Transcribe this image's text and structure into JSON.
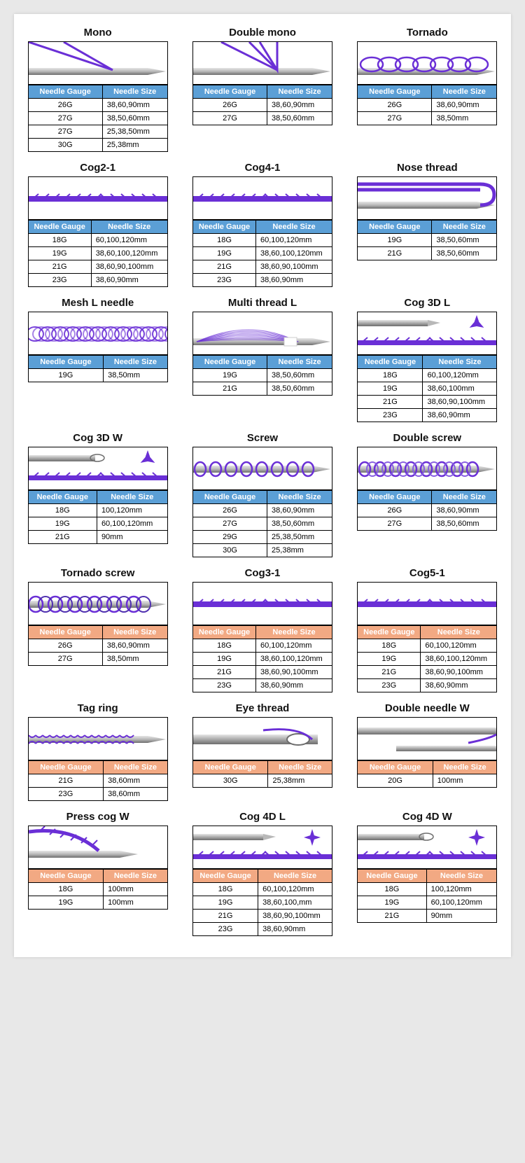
{
  "colors": {
    "header_blue": "#5b9fd6",
    "header_peach": "#f2a983",
    "thread": "#6a2fd6",
    "needle_body": "#b8b8b8",
    "needle_dark": "#6d6d6d",
    "needle_light": "#e6e6e6"
  },
  "header_labels": {
    "gauge": "Needle Gauge",
    "size": "Needle Size"
  },
  "cards": [
    {
      "title": "Mono",
      "illus": "mono",
      "header_color": "blue",
      "rows": [
        [
          "26G",
          "38,60,90mm"
        ],
        [
          "27G",
          "38,50,60mm"
        ],
        [
          "27G",
          "25,38,50mm"
        ],
        [
          "30G",
          "25,38mm"
        ]
      ]
    },
    {
      "title": "Double mono",
      "illus": "double_mono",
      "header_color": "blue",
      "rows": [
        [
          "26G",
          "38,60,90mm"
        ],
        [
          "27G",
          "38,50,60mm"
        ]
      ]
    },
    {
      "title": "Tornado",
      "illus": "tornado",
      "header_color": "blue",
      "rows": [
        [
          "26G",
          "38,60,90mm"
        ],
        [
          "27G",
          "38,50mm"
        ]
      ]
    },
    {
      "title": "Cog2-1",
      "illus": "cog",
      "header_color": "blue",
      "rows": [
        [
          "18G",
          "60,100,120mm"
        ],
        [
          "19G",
          "38,60,100,120mm"
        ],
        [
          "21G",
          "38,60,90,100mm"
        ],
        [
          "23G",
          "38,60,90mm"
        ]
      ]
    },
    {
      "title": "Cog4-1",
      "illus": "cog",
      "header_color": "blue",
      "rows": [
        [
          "18G",
          "60,100,120mm"
        ],
        [
          "19G",
          "38,60,100,120mm"
        ],
        [
          "21G",
          "38,60,90,100mm"
        ],
        [
          "23G",
          "38,60,90mm"
        ]
      ]
    },
    {
      "title": "Nose thread",
      "illus": "nose",
      "header_color": "blue",
      "rows": [
        [
          "19G",
          "38,50,60mm"
        ],
        [
          "21G",
          "38,50,60mm"
        ]
      ]
    },
    {
      "title": "Mesh L needle",
      "illus": "mesh",
      "header_color": "blue",
      "rows": [
        [
          "19G",
          "38,50mm"
        ]
      ]
    },
    {
      "title": "Multi thread L",
      "illus": "multi",
      "header_color": "blue",
      "rows": [
        [
          "19G",
          "38,50,60mm"
        ],
        [
          "21G",
          "38,50,60mm"
        ]
      ]
    },
    {
      "title": "Cog 3D L",
      "illus": "cog3d_l",
      "header_color": "blue",
      "rows": [
        [
          "18G",
          "60,100,120mm"
        ],
        [
          "19G",
          "38,60,100mm"
        ],
        [
          "21G",
          "38,60,90,100mm"
        ],
        [
          "23G",
          "38,60,90mm"
        ]
      ]
    },
    {
      "title": "Cog 3D W",
      "illus": "cog3d_w",
      "header_color": "blue",
      "rows": [
        [
          "18G",
          "100,120mm"
        ],
        [
          "19G",
          "60,100,120mm"
        ],
        [
          "21G",
          "90mm"
        ]
      ]
    },
    {
      "title": "Screw",
      "illus": "screw",
      "header_color": "blue",
      "rows": [
        [
          "26G",
          "38,60,90mm"
        ],
        [
          "27G",
          "38,50,60mm"
        ],
        [
          "29G",
          "25,38,50mm"
        ],
        [
          "30G",
          "25,38mm"
        ]
      ]
    },
    {
      "title": "Double screw",
      "illus": "double_screw",
      "header_color": "blue",
      "rows": [
        [
          "26G",
          "38,60,90mm"
        ],
        [
          "27G",
          "38,50,60mm"
        ]
      ]
    },
    {
      "title": "Tornado screw",
      "illus": "tornado_screw",
      "header_color": "peach",
      "rows": [
        [
          "26G",
          "38,60,90mm"
        ],
        [
          "27G",
          "38,50mm"
        ]
      ]
    },
    {
      "title": "Cog3-1",
      "illus": "cog",
      "header_color": "peach",
      "rows": [
        [
          "18G",
          "60,100,120mm"
        ],
        [
          "19G",
          "38,60,100,120mm"
        ],
        [
          "21G",
          "38,60,90,100mm"
        ],
        [
          "23G",
          "38,60,90mm"
        ]
      ]
    },
    {
      "title": "Cog5-1",
      "illus": "cog",
      "header_color": "peach",
      "rows": [
        [
          "18G",
          "60,100,120mm"
        ],
        [
          "19G",
          "38,60,100,120mm"
        ],
        [
          "21G",
          "38,60,90,100mm"
        ],
        [
          "23G",
          "38,60,90mm"
        ]
      ]
    },
    {
      "title": "Tag ring",
      "illus": "tag_ring",
      "header_color": "peach",
      "rows": [
        [
          "21G",
          "38,60mm"
        ],
        [
          "23G",
          "38,60mm"
        ]
      ]
    },
    {
      "title": "Eye thread",
      "illus": "eye",
      "header_color": "peach",
      "rows": [
        [
          "30G",
          "25,38mm"
        ]
      ]
    },
    {
      "title": "Double needle W",
      "illus": "double_needle",
      "header_color": "peach",
      "rows": [
        [
          "20G",
          "100mm"
        ]
      ]
    },
    {
      "title": "Press cog W",
      "illus": "press_cog",
      "header_color": "peach",
      "rows": [
        [
          "18G",
          "100mm"
        ],
        [
          "19G",
          "100mm"
        ]
      ]
    },
    {
      "title": "Cog 4D L",
      "illus": "cog4d_l",
      "header_color": "peach",
      "rows": [
        [
          "18G",
          "60,100,120mm"
        ],
        [
          "19G",
          "38,60,100,mm"
        ],
        [
          "21G",
          "38,60,90,100mm"
        ],
        [
          "23G",
          "38,60,90mm"
        ]
      ]
    },
    {
      "title": "Cog 4D W",
      "illus": "cog4d_w",
      "header_color": "peach",
      "rows": [
        [
          "18G",
          "100,120mm"
        ],
        [
          "19G",
          "60,100,120mm"
        ],
        [
          "21G",
          "90mm"
        ]
      ]
    }
  ]
}
